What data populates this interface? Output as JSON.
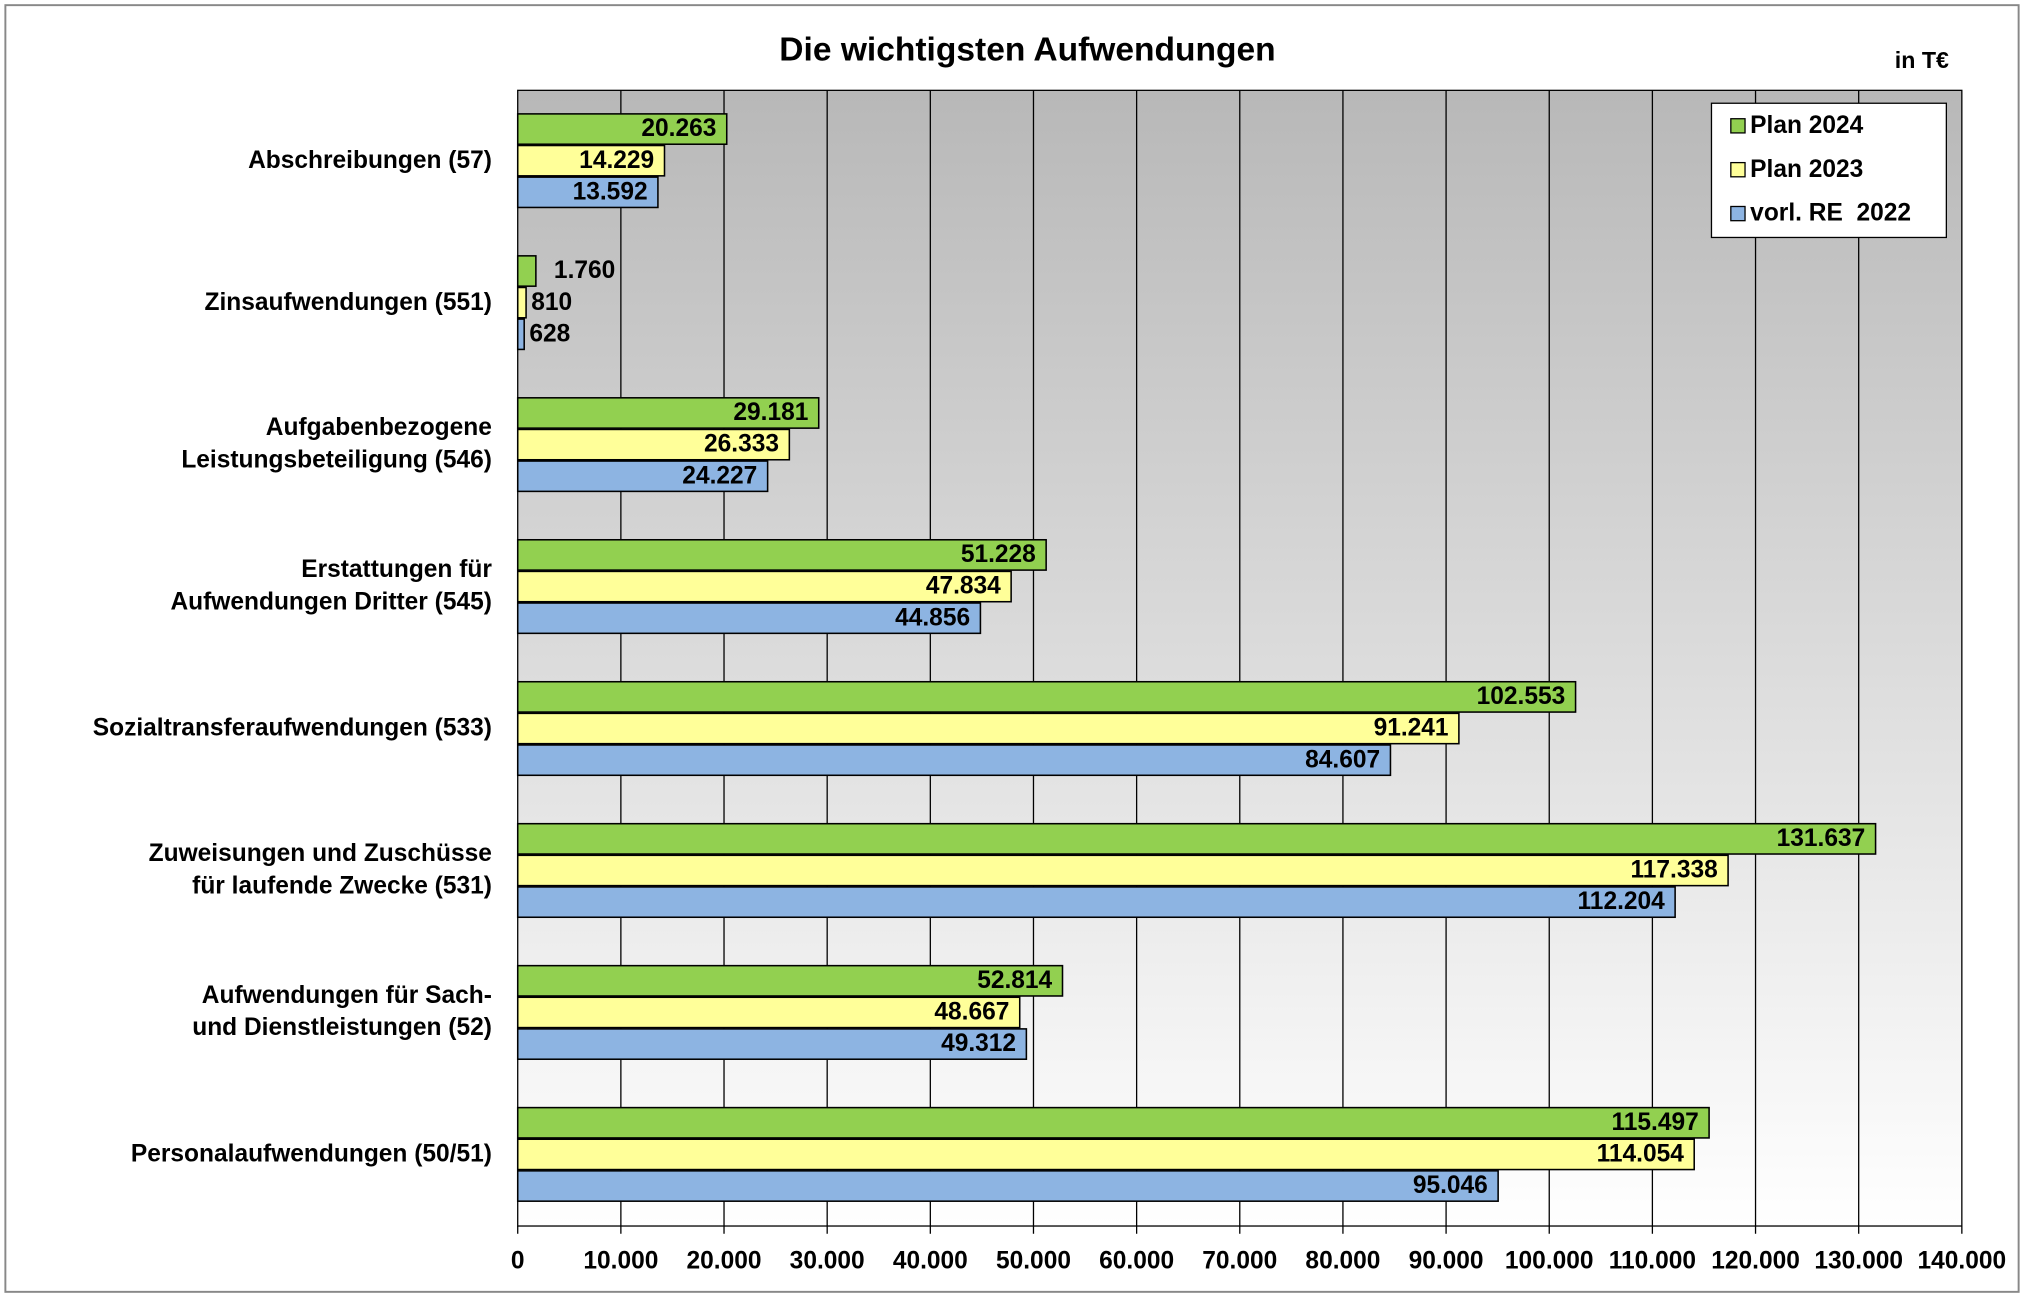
{
  "chart_data": {
    "type": "barh",
    "title": "Die wichtigsten Aufwendungen",
    "unit_label": "in T€",
    "categories": [
      "Abschreibungen (57)",
      "Zinsaufwendungen (551)",
      "Aufgabenbezogene\nLeistungsbeteiligung (546)",
      "Erstattungen für\nAufwendungen Dritter (545)",
      "Sozialtransferaufwendungen (533)",
      "Zuweisungen und Zuschüsse\nfür laufende Zwecke (531)",
      "Aufwendungen für Sach-\nund Dienstleistungen (52)",
      "Personalaufwendungen (50/51)"
    ],
    "series": [
      {
        "name": "Plan 2024",
        "color": "#92d050",
        "values": [
          20263,
          1760,
          29181,
          51228,
          102553,
          131637,
          52814,
          115497
        ],
        "value_labels": [
          "20.263",
          "1.760",
          "29.181",
          "51.228",
          "102.553",
          "131.637",
          "52.814",
          "115.497"
        ]
      },
      {
        "name": "Plan 2023",
        "color": "#ffff99",
        "values": [
          14229,
          810,
          26333,
          47834,
          91241,
          117338,
          48667,
          114054
        ],
        "value_labels": [
          "14.229",
          "810",
          "26.333",
          "47.834",
          "91.241",
          "117.338",
          "48.667",
          "114.054"
        ]
      },
      {
        "name": "vorl. RE  2022",
        "color": "#8db4e2",
        "values": [
          13592,
          628,
          24227,
          44856,
          84607,
          112204,
          49312,
          95046
        ],
        "value_labels": [
          "13.592",
          "628",
          "24.227",
          "44.856",
          "84.607",
          "112.204",
          "49.312",
          "95.046"
        ]
      }
    ],
    "xlim": [
      0,
      140000
    ],
    "xticks": [
      0,
      {
        "value": 10000,
        "label": "10.000"
      },
      {
        "value": 20000,
        "label": "20.000"
      },
      {
        "value": 30000,
        "label": "30.000"
      },
      {
        "value": 40000,
        "label": "40.000"
      },
      {
        "value": 50000,
        "label": "50.000"
      },
      {
        "value": 60000,
        "label": "60.000"
      },
      {
        "value": 70000,
        "label": "70.000"
      },
      {
        "value": 80000,
        "label": "80.000"
      },
      {
        "value": 90000,
        "label": "90.000"
      },
      {
        "value": 100000,
        "label": "100.000"
      },
      {
        "value": 110000,
        "label": "110.000"
      },
      {
        "value": 120000,
        "label": "120.000"
      },
      {
        "value": 130000,
        "label": "130.000"
      },
      {
        "value": 140000,
        "label": "140.000"
      }
    ],
    "grid": true,
    "legend": "upper right"
  }
}
